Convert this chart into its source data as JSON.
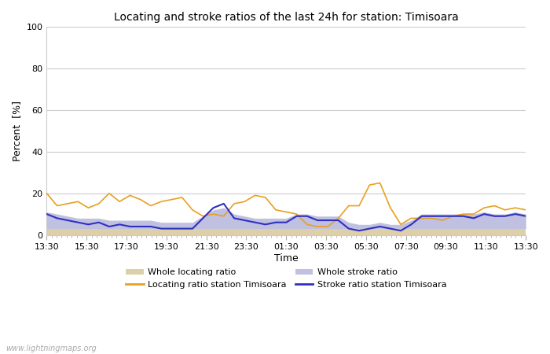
{
  "title": "Locating and stroke ratios of the last 24h for station: Timisoara",
  "xlabel": "Time",
  "ylabel": "Percent  [%]",
  "x_labels": [
    "13:30",
    "15:30",
    "17:30",
    "19:30",
    "21:30",
    "23:30",
    "01:30",
    "03:30",
    "05:30",
    "07:30",
    "09:30",
    "11:30",
    "13:30"
  ],
  "ylim": [
    0,
    100
  ],
  "yticks": [
    0,
    20,
    40,
    60,
    80,
    100
  ],
  "background_color": "#ffffff",
  "plot_bg_color": "#ffffff",
  "grid_color": "#cccccc",
  "watermark": "www.lightningmaps.org",
  "locating_line_color": "#e8a020",
  "stroke_line_color": "#3030c0",
  "locating_fill_color": "#ddd0a8",
  "stroke_fill_color": "#c0c0e0",
  "locating_ratio_line": [
    20,
    14,
    15,
    16,
    13,
    15,
    20,
    16,
    19,
    17,
    14,
    16,
    17,
    18,
    12,
    9,
    10,
    9,
    15,
    16,
    19,
    18,
    12,
    11,
    10,
    5,
    4,
    4,
    8,
    14,
    14,
    24,
    25,
    13,
    5,
    8,
    8,
    8,
    7,
    9,
    10,
    10,
    13,
    14,
    12,
    13,
    12
  ],
  "stroke_ratio_line": [
    10,
    8,
    7,
    6,
    5,
    6,
    4,
    5,
    4,
    4,
    4,
    3,
    3,
    3,
    3,
    8,
    13,
    15,
    8,
    7,
    6,
    5,
    6,
    6,
    9,
    9,
    7,
    7,
    7,
    3,
    2,
    3,
    4,
    3,
    2,
    5,
    9,
    9,
    9,
    9,
    9,
    8,
    10,
    9,
    9,
    10,
    9
  ],
  "locating_fill": [
    3,
    3,
    3,
    3,
    3,
    3,
    3,
    3,
    3,
    3,
    3,
    3,
    3,
    3,
    3,
    3,
    3,
    3,
    3,
    3,
    3,
    3,
    3,
    3,
    3,
    3,
    3,
    3,
    3,
    3,
    3,
    3,
    3,
    3,
    3,
    3,
    3,
    3,
    3,
    3,
    3,
    3,
    3,
    3,
    3,
    3,
    3
  ],
  "stroke_fill": [
    8,
    7,
    6,
    5,
    5,
    5,
    4,
    4,
    4,
    4,
    4,
    3,
    3,
    3,
    3,
    6,
    9,
    10,
    7,
    6,
    5,
    5,
    5,
    5,
    7,
    7,
    6,
    6,
    6,
    3,
    2,
    2,
    3,
    2,
    2,
    4,
    7,
    7,
    7,
    7,
    7,
    7,
    8,
    7,
    7,
    8,
    7
  ]
}
